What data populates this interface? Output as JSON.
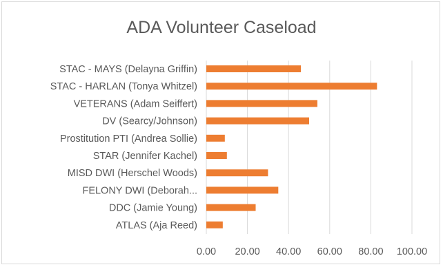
{
  "chart_data": {
    "type": "bar",
    "orientation": "horizontal",
    "title": "ADA Volunteer Caseload",
    "categories": [
      "STAC - MAYS (Delayna Griffin)",
      "STAC - HARLAN (Tonya Whitzel)",
      "VETERANS (Adam Seiffert)",
      "DV (Searcy/Johnson)",
      "Prostitution PTI (Andrea Sollie)",
      "STAR (Jennifer Kachel)",
      "MISD DWI (Herschel Woods)",
      "FELONY DWI (Deborah...",
      "DDC (Jamie Young)",
      "ATLAS (Aja Reed)"
    ],
    "values": [
      46,
      83,
      54,
      50,
      9,
      10,
      30,
      35,
      24,
      8
    ],
    "xlim": [
      0,
      100
    ],
    "x_ticks": [
      "0.00",
      "20.00",
      "40.00",
      "60.00",
      "80.00",
      "100.00"
    ],
    "xlabel": "",
    "ylabel": "",
    "grid": "vertical",
    "legend": "none",
    "bar_color": "#ed7d31",
    "grid_color": "#d9d9d9",
    "text_color": "#595959"
  }
}
